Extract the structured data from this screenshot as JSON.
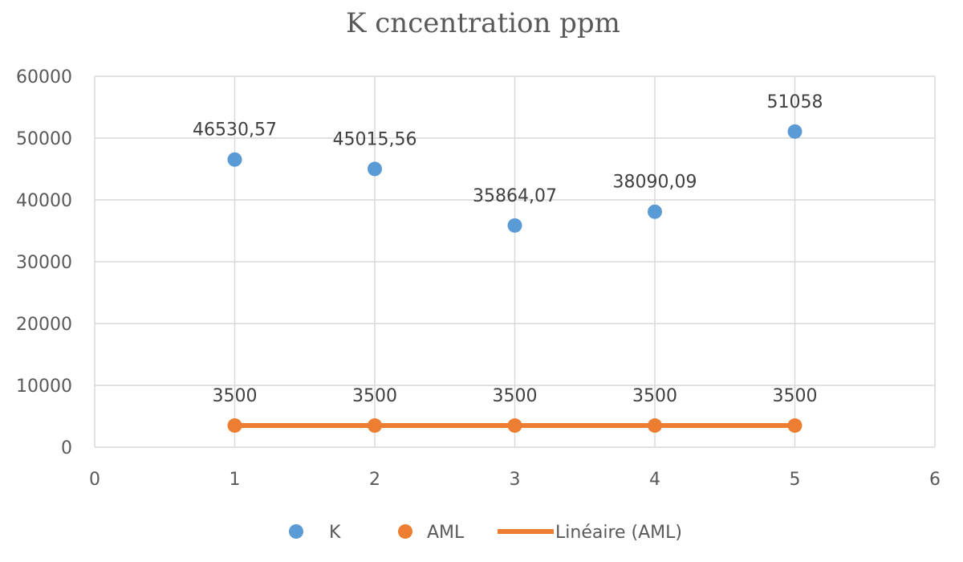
{
  "chart_data": {
    "type": "scatter",
    "title": "K cncentration ppm",
    "xlabel": "",
    "ylabel": "",
    "xlim": [
      0,
      6
    ],
    "ylim": [
      0,
      60000
    ],
    "x_ticks": [
      "0",
      "1",
      "2",
      "3",
      "4",
      "5",
      "6"
    ],
    "y_ticks": [
      "0",
      "10000",
      "20000",
      "30000",
      "40000",
      "50000",
      "60000"
    ],
    "grid": true,
    "legend_position": "bottom",
    "series": [
      {
        "name": "K",
        "color": "#5b9bd5",
        "x": [
          1,
          2,
          3,
          4,
          5
        ],
        "y": [
          46530.57,
          45015.56,
          35864.07,
          38090.09,
          51058
        ],
        "labels": [
          "46530,57",
          "45015,56",
          "35864,07",
          "38090,09",
          "51058"
        ]
      },
      {
        "name": "AML",
        "color": "#ed7d31",
        "x": [
          1,
          2,
          3,
          4,
          5
        ],
        "y": [
          3500,
          3500,
          3500,
          3500,
          3500
        ],
        "labels": [
          "3500",
          "3500",
          "3500",
          "3500",
          "3500"
        ]
      }
    ],
    "trendline": {
      "name": "Linéaire (AML)",
      "color": "#ed7d31",
      "x": [
        1,
        5
      ],
      "y": [
        3500,
        3500
      ]
    }
  }
}
